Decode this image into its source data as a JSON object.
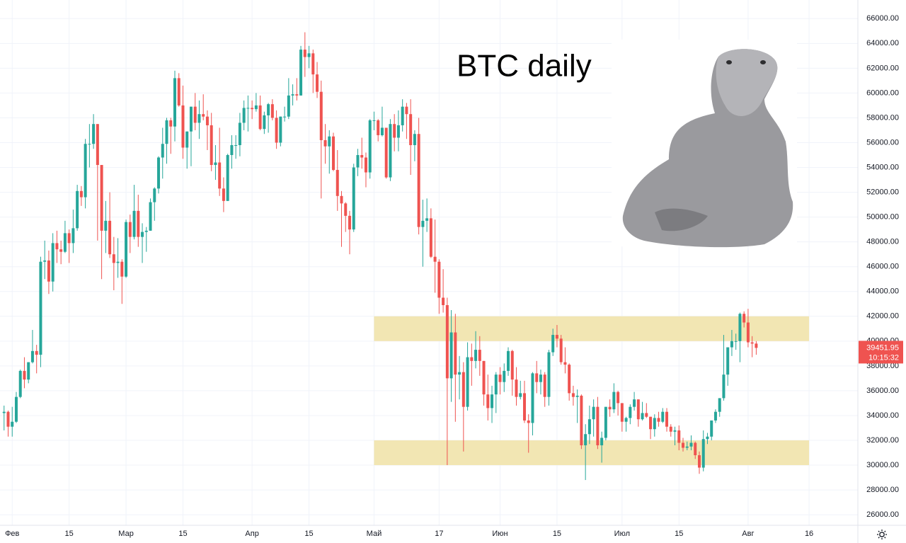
{
  "chart_data": {
    "type": "candlestick",
    "title": "BTC daily",
    "x": [
      "01-30",
      "01-31",
      "02-01",
      "02-02",
      "02-03",
      "02-04",
      "02-05",
      "02-06",
      "02-07",
      "02-08",
      "02-09",
      "02-10",
      "02-11",
      "02-12",
      "02-13",
      "02-14",
      "02-15",
      "02-16",
      "02-17",
      "02-18",
      "02-19",
      "02-20",
      "02-21",
      "02-22",
      "02-23",
      "02-24",
      "02-25",
      "02-26",
      "02-27",
      "02-28",
      "03-01",
      "03-02",
      "03-03",
      "03-04",
      "03-05",
      "03-06",
      "03-07",
      "03-08",
      "03-09",
      "03-10",
      "03-11",
      "03-12",
      "03-13",
      "03-14",
      "03-15",
      "03-16",
      "03-17",
      "03-18",
      "03-19",
      "03-20",
      "03-21",
      "03-22",
      "03-23",
      "03-24",
      "03-25",
      "03-26",
      "03-27",
      "03-28",
      "03-29",
      "03-30",
      "03-31",
      "04-01",
      "04-02",
      "04-03",
      "04-04",
      "04-05",
      "04-06",
      "04-07",
      "04-08",
      "04-09",
      "04-10",
      "04-11",
      "04-12",
      "04-13",
      "04-14",
      "04-15",
      "04-16",
      "04-17",
      "04-18",
      "04-19",
      "04-20",
      "04-21",
      "04-22",
      "04-23",
      "04-24",
      "04-25",
      "04-26",
      "04-27",
      "04-28",
      "04-29",
      "04-30",
      "05-01",
      "05-02",
      "05-03",
      "05-04",
      "05-05",
      "05-06",
      "05-07",
      "05-08",
      "05-09",
      "05-10",
      "05-11",
      "05-12",
      "05-13",
      "05-14",
      "05-15",
      "05-16",
      "05-17",
      "05-18",
      "05-19",
      "05-20",
      "05-21",
      "05-22",
      "05-23",
      "05-24",
      "05-25",
      "05-26",
      "05-27",
      "05-28",
      "05-29",
      "05-30",
      "05-31",
      "06-01",
      "06-02",
      "06-03",
      "06-04",
      "06-05",
      "06-06",
      "06-07",
      "06-08",
      "06-09",
      "06-10",
      "06-11",
      "06-12",
      "06-13",
      "06-14",
      "06-15",
      "06-16",
      "06-17",
      "06-18",
      "06-19",
      "06-20",
      "06-21",
      "06-22",
      "06-23",
      "06-24",
      "06-25",
      "06-26",
      "06-27",
      "06-28",
      "06-29",
      "06-30",
      "07-01",
      "07-02",
      "07-03",
      "07-04",
      "07-05",
      "07-06",
      "07-07",
      "07-08",
      "07-09",
      "07-10",
      "07-11",
      "07-12",
      "07-13",
      "07-14",
      "07-15",
      "07-16",
      "07-17",
      "07-18",
      "07-19",
      "07-20",
      "07-21",
      "07-22",
      "07-23",
      "07-24",
      "07-25",
      "07-26",
      "07-27",
      "07-28",
      "07-29",
      "07-30",
      "07-31",
      "08-01",
      "08-02",
      "08-03"
    ],
    "series": [
      {
        "up_color": "#26a69a",
        "down_color": "#ef5350",
        "open": [
          34200,
          34300,
          33100,
          33500,
          35500,
          37600,
          36900,
          38300,
          39200,
          38900,
          46400,
          46500,
          44800,
          47900,
          47400,
          47200,
          48700,
          47900,
          49100,
          52100,
          51600,
          55900,
          55900,
          57500,
          54200,
          48900,
          49700,
          47000,
          46300,
          46400,
          45200,
          49600,
          48400,
          50500,
          48400,
          48800,
          48900,
          51200,
          52300,
          54800,
          55900,
          57800,
          57300,
          61200,
          59000,
          55600,
          56900,
          58900,
          57600,
          58300,
          58100,
          57400,
          54200,
          54400,
          52300,
          51300,
          55000,
          55800,
          55800,
          57600,
          58800,
          58800,
          58700,
          59000,
          57100,
          58200,
          59100,
          58000,
          56000,
          58100,
          58100,
          59800,
          59900,
          59800,
          63500,
          62900,
          63200,
          61500,
          60100,
          56200,
          55700,
          56500,
          53800,
          51700,
          51100,
          50100,
          49000,
          54000,
          55000,
          54800,
          53600,
          57800,
          57800,
          56600,
          57200,
          53200,
          57500,
          56400,
          57400,
          58900,
          58300,
          55800,
          56700,
          49200,
          49700,
          49900,
          46800,
          46400,
          43500,
          42900,
          37000,
          40700,
          37300,
          37500,
          34700,
          38700,
          38400,
          39300,
          38400,
          35700,
          34600,
          35700,
          37300,
          36700,
          37600,
          39200,
          36900,
          35500,
          35800,
          33600,
          33400,
          37400,
          36700,
          37300,
          35500,
          39100,
          40500,
          40200,
          38300,
          38100,
          35800,
          35500,
          35600,
          31600,
          32500,
          33700,
          34700,
          31600,
          32200,
          34700,
          34500,
          35900,
          35000,
          33500,
          33800,
          34700,
          35300,
          33700,
          34200,
          33900,
          32900,
          33800,
          33500,
          34300,
          33100,
          32700,
          32800,
          31800,
          31400,
          31500,
          31800,
          30800,
          29800,
          32100,
          32300,
          33600,
          34300,
          35400,
          37300,
          39500,
          40000,
          40000,
          42200,
          41500,
          39900,
          39800
        ],
        "high": [
          34800,
          34400,
          34700,
          35900,
          37700,
          38700,
          38300,
          40900,
          39700,
          46800,
          48100,
          47300,
          48700,
          48900,
          48100,
          49700,
          49000,
          50600,
          52600,
          52500,
          56300,
          57500,
          58300,
          57500,
          54200,
          51300,
          52000,
          48400,
          48300,
          46600,
          49800,
          50200,
          52600,
          51800,
          49500,
          49200,
          51500,
          52400,
          54900,
          57200,
          58000,
          58000,
          61800,
          61600,
          60600,
          56900,
          58900,
          60000,
          59400,
          59900,
          58600,
          58400,
          55800,
          57200,
          53200,
          55100,
          56600,
          56600,
          58400,
          59400,
          59800,
          59400,
          60000,
          59800,
          58500,
          59200,
          59500,
          58600,
          58100,
          58900,
          61200,
          60700,
          61200,
          63800,
          64900,
          63800,
          63500,
          62500,
          61000,
          57500,
          57000,
          56800,
          55400,
          52100,
          51200,
          50500,
          54300,
          55500,
          56400,
          55200,
          57900,
          58500,
          57900,
          58900,
          57200,
          57900,
          58300,
          58600,
          59500,
          59200,
          59500,
          57000,
          58000,
          51400,
          51500,
          50700,
          49800,
          46600,
          45800,
          43500,
          42500,
          42200,
          38800,
          38300,
          39900,
          39800,
          40800,
          40400,
          38400,
          37300,
          36400,
          37500,
          37900,
          38200,
          39500,
          39300,
          37900,
          36800,
          36800,
          34100,
          37500,
          38400,
          37700,
          37500,
          39300,
          41000,
          41300,
          40500,
          39500,
          38200,
          36400,
          36100,
          35700,
          33300,
          34800,
          35300,
          35500,
          32700,
          34700,
          35300,
          36600,
          36000,
          35000,
          33900,
          34900,
          35900,
          35300,
          35100,
          35000,
          33900,
          34100,
          34300,
          34600,
          34600,
          33300,
          33100,
          33200,
          32200,
          31900,
          32400,
          31900,
          31100,
          32800,
          32600,
          33600,
          34500,
          35400,
          40500,
          39500,
          40900,
          40600,
          42300,
          42400,
          42600,
          40400,
          40000
        ],
        "low": [
          32800,
          32300,
          32300,
          33400,
          35400,
          36200,
          36600,
          38200,
          37400,
          37900,
          45000,
          43800,
          44000,
          46300,
          46200,
          47100,
          46300,
          47100,
          48900,
          50900,
          50700,
          54000,
          55500,
          48100,
          45000,
          47100,
          46700,
          44100,
          45100,
          43000,
          45100,
          47100,
          48200,
          47600,
          46300,
          47200,
          48900,
          49700,
          51900,
          53100,
          54300,
          55100,
          56100,
          58900,
          54700,
          53900,
          54100,
          57000,
          56300,
          57800,
          55400,
          53700,
          53000,
          51700,
          50400,
          51300,
          53900,
          54700,
          54900,
          57000,
          56900,
          57900,
          58500,
          57000,
          56700,
          56800,
          57800,
          55500,
          55700,
          57700,
          57900,
          59000,
          59400,
          59800,
          61300,
          62000,
          60000,
          59600,
          51500,
          54300,
          53500,
          53700,
          50500,
          47600,
          48800,
          47000,
          48800,
          53300,
          53900,
          52400,
          53100,
          57000,
          56100,
          56500,
          53100,
          52900,
          55300,
          55300,
          56900,
          56300,
          53400,
          54500,
          48600,
          46000,
          48800,
          46700,
          43900,
          42200,
          42300,
          30000,
          35100,
          33500,
          35300,
          31100,
          34400,
          36400,
          37800,
          37200,
          34800,
          33600,
          33400,
          34200,
          35700,
          35900,
          37200,
          35600,
          34800,
          35300,
          33400,
          31000,
          32400,
          35800,
          35700,
          34700,
          34800,
          38800,
          39500,
          38100,
          37400,
          35200,
          34800,
          33400,
          31300,
          28800,
          31700,
          32300,
          31300,
          30200,
          32000,
          33900,
          34200,
          34000,
          32700,
          32700,
          33300,
          34400,
          33100,
          33600,
          33800,
          32100,
          32300,
          33100,
          33400,
          32700,
          32300,
          31600,
          31200,
          31100,
          31200,
          31200,
          30500,
          29300,
          29500,
          31700,
          32000,
          33400,
          33900,
          35200,
          36400,
          38800,
          39300,
          38300,
          41100,
          39500,
          38700,
          38900
        ],
        "close": [
          34300,
          33100,
          33500,
          35500,
          37600,
          36900,
          38300,
          39200,
          38900,
          46400,
          46500,
          44800,
          47900,
          47400,
          47200,
          48700,
          47900,
          49100,
          52100,
          51600,
          55900,
          55900,
          57500,
          54200,
          48900,
          49700,
          47000,
          46300,
          46400,
          45200,
          49600,
          48400,
          50500,
          48400,
          48800,
          48900,
          51200,
          52300,
          54800,
          55900,
          57800,
          57300,
          61200,
          59000,
          55600,
          56900,
          58900,
          57600,
          58300,
          58100,
          57400,
          54200,
          54400,
          52300,
          51300,
          55000,
          55800,
          55800,
          57600,
          58800,
          58800,
          58700,
          59000,
          57100,
          58200,
          59100,
          58000,
          56000,
          58100,
          58100,
          59800,
          59900,
          59800,
          63500,
          62900,
          63200,
          61500,
          60100,
          56200,
          55700,
          56500,
          53800,
          51700,
          51100,
          50100,
          49000,
          54000,
          55000,
          54800,
          53600,
          57800,
          57800,
          56600,
          57200,
          53200,
          57500,
          56400,
          57400,
          58900,
          58300,
          55800,
          56700,
          49200,
          49700,
          49900,
          46800,
          46400,
          43500,
          42900,
          37000,
          40700,
          37300,
          37500,
          34700,
          38700,
          38400,
          39300,
          38400,
          35700,
          34600,
          35700,
          37300,
          36700,
          37600,
          39200,
          36900,
          35500,
          35800,
          33600,
          33400,
          37400,
          36700,
          37300,
          35500,
          39100,
          40500,
          40200,
          38300,
          38100,
          35800,
          35500,
          35600,
          31600,
          32500,
          33700,
          34700,
          31600,
          32200,
          34700,
          34500,
          35900,
          35000,
          33500,
          33800,
          34700,
          35300,
          33700,
          34200,
          33900,
          32900,
          33800,
          33500,
          34300,
          33100,
          32700,
          32800,
          31800,
          31400,
          31500,
          31800,
          30800,
          29800,
          32100,
          32300,
          33600,
          34300,
          35400,
          37300,
          39500,
          40000,
          40000,
          42200,
          41500,
          39900,
          39800,
          39451.95
        ]
      }
    ],
    "countdown": "10:15:32",
    "zones": [
      {
        "x": [
          "05-01",
          "08-16"
        ],
        "y": [
          40000,
          42000
        ],
        "color": "#f2e6b3"
      },
      {
        "x": [
          "05-01",
          "08-16"
        ],
        "y": [
          30000,
          32000
        ],
        "color": "#f2e6b3"
      }
    ],
    "xlim": [
      "01-29",
      "08-28"
    ],
    "xticks": [
      {
        "value": "02-01",
        "label": "Фев"
      },
      {
        "value": "02-15",
        "label": "15"
      },
      {
        "value": "03-01",
        "label": "Мар"
      },
      {
        "value": "03-15",
        "label": "15"
      },
      {
        "value": "04-01",
        "label": "Апр"
      },
      {
        "value": "04-15",
        "label": "15"
      },
      {
        "value": "05-01",
        "label": "Май"
      },
      {
        "value": "05-17",
        "label": "17"
      },
      {
        "value": "06-01",
        "label": "Июн"
      },
      {
        "value": "06-15",
        "label": "15"
      },
      {
        "value": "07-01",
        "label": "Июл"
      },
      {
        "value": "07-15",
        "label": "15"
      },
      {
        "value": "08-01",
        "label": "Авг"
      },
      {
        "value": "08-16",
        "label": "16"
      }
    ],
    "ylim": [
      25150,
      67500
    ],
    "yticks": [
      {
        "value": 26000,
        "label": "26000.00"
      },
      {
        "value": 28000,
        "label": "28000.00"
      },
      {
        "value": 30000,
        "label": "30000.00"
      },
      {
        "value": 32000,
        "label": "32000.00"
      },
      {
        "value": 34000,
        "label": "34000.00"
      },
      {
        "value": 36000,
        "label": "36000.00"
      },
      {
        "value": 38000,
        "label": "38000.00"
      },
      {
        "value": 40000,
        "label": "40000.00"
      },
      {
        "value": 42000,
        "label": "42000.00"
      },
      {
        "value": 44000,
        "label": "44000.00"
      },
      {
        "value": 46000,
        "label": "46000.00"
      },
      {
        "value": 48000,
        "label": "48000.00"
      },
      {
        "value": 50000,
        "label": "50000.00"
      },
      {
        "value": 52000,
        "label": "52000.00"
      },
      {
        "value": 54000,
        "label": "54000.00"
      },
      {
        "value": 56000,
        "label": "56000.00"
      },
      {
        "value": 58000,
        "label": "58000.00"
      },
      {
        "value": 60000,
        "label": "60000.00"
      },
      {
        "value": 62000,
        "label": "62000.00"
      },
      {
        "value": 64000,
        "label": "64000.00"
      },
      {
        "value": 66000,
        "label": "66000.00"
      }
    ],
    "grid": true
  }
}
